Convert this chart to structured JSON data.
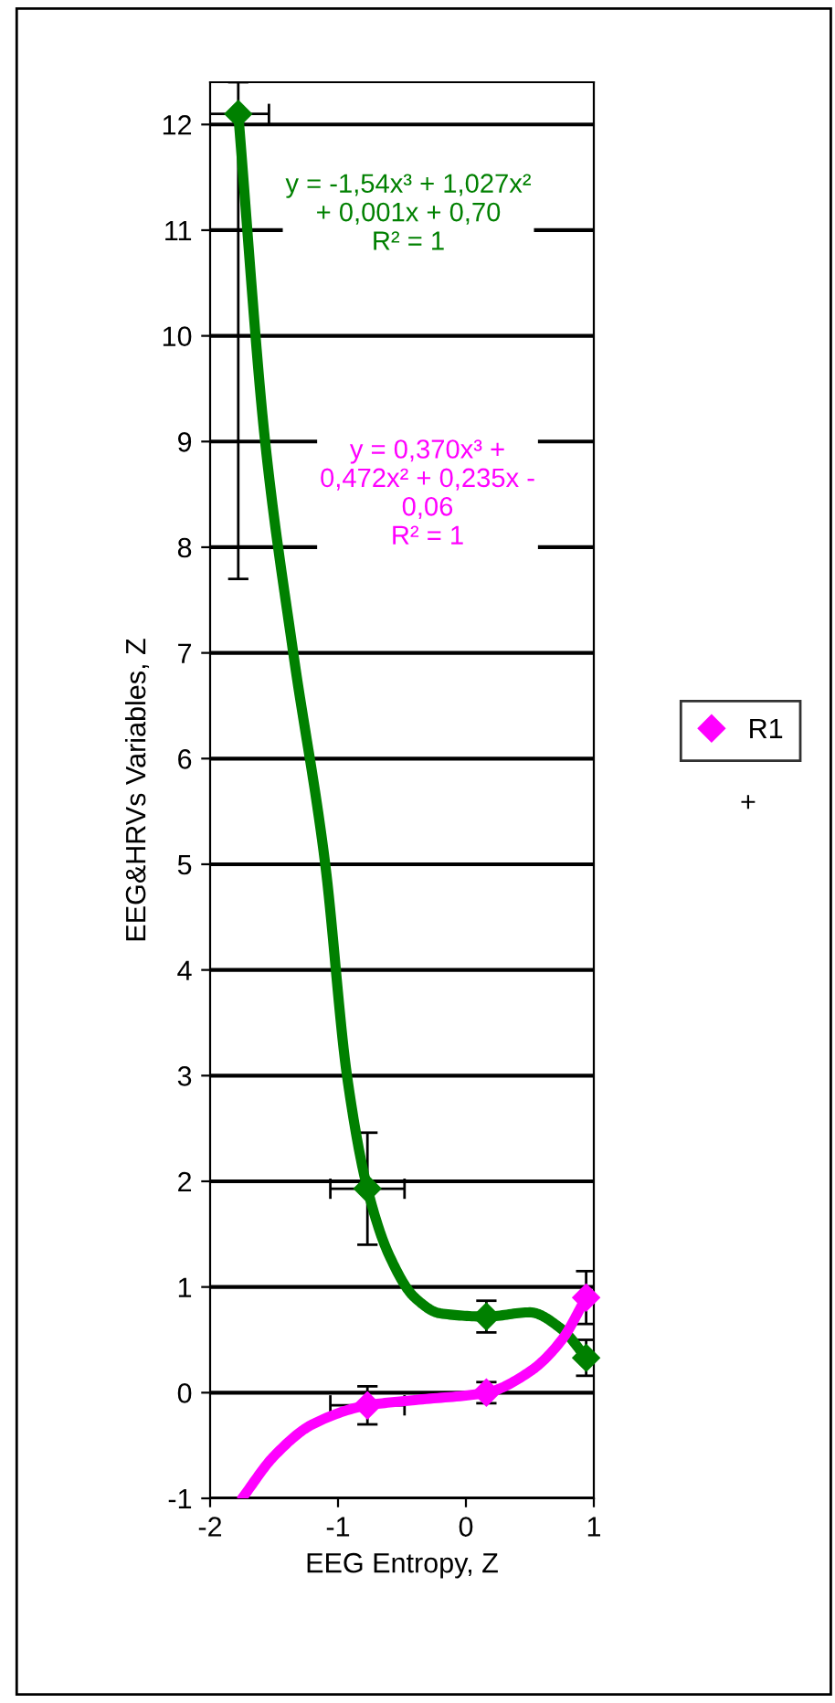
{
  "chart_data": {
    "type": "scatter",
    "xlabel": "EEG Entropy, Z",
    "ylabel": "EEG&HRVs Variables, Z",
    "x": [
      -1.78,
      -0.77,
      0.16,
      0.94
    ],
    "series": [
      {
        "color": "#008000",
        "values": [
          12.1,
          1.93,
          0.72,
          0.33
        ],
        "errors": [
          [
            7.7,
            12.4
          ],
          0.53,
          0.15,
          0.17
        ],
        "xerrors": [
          0.24,
          0.29,
          null,
          null
        ]
      },
      {
        "name": "R1",
        "color": "#ff00ff",
        "values": [
          null,
          -0.12,
          0.0,
          0.9
        ],
        "errors": [
          null,
          0.18,
          0.1,
          0.25
        ],
        "xerrors": [
          null,
          0.29,
          null,
          null
        ]
      },
      {
        "type": "line",
        "marker": "none",
        "color": "#008000",
        "x": [
          -1.78,
          -1.57,
          -1.35,
          -1.1,
          -0.93,
          -0.77,
          -0.6,
          -0.4,
          -0.2,
          0.16,
          0.5,
          0.75,
          0.94
        ],
        "values": [
          12.1,
          9,
          7,
          5,
          3,
          1.93,
          1.3,
          0.9,
          0.75,
          0.72,
          0.76,
          0.6,
          0.33
        ]
      },
      {
        "type": "line",
        "marker": "none",
        "color": "#ff00ff",
        "x": [
          -1.75,
          -1.5,
          -1.2,
          -0.77,
          -0.4,
          0.16,
          0.5,
          0.75,
          0.94
        ],
        "values": [
          -1.0,
          -0.6,
          -0.3,
          -0.12,
          -0.07,
          0.0,
          0.2,
          0.5,
          0.9
        ]
      }
    ],
    "annotations": [
      "y = -1,54x³ + 1,027x²\n+ 0,001x + 0,70\nR² = 1",
      "y = 0,370x³ +\n0,472x² + 0,235x -\n0,06\nR² = 1",
      "+"
    ],
    "xlim": [
      -2,
      1
    ],
    "xticks": [
      -2,
      -1,
      0,
      1
    ],
    "ylim": [
      -1,
      12.4
    ],
    "yticks": [
      -1,
      0,
      1,
      2,
      3,
      4,
      5,
      6,
      7,
      8,
      9,
      10,
      11,
      12
    ],
    "grid": "y",
    "legend": "right",
    "marker": "diamond"
  }
}
